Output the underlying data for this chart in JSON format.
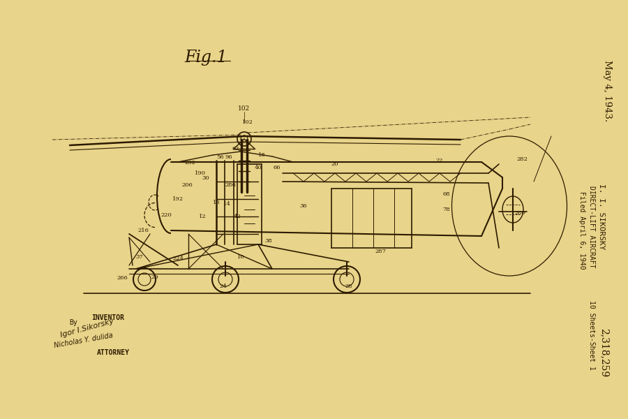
{
  "bg_color": "#E8D48A",
  "line_color": "#2C1A00",
  "fig_label": "Fig.1",
  "right_top": "May 4, 1943.",
  "right_mid1": "I. I. SIKORSKY",
  "right_mid2": "DIRECT-LIFT AIRCRAFT",
  "right_mid3": "Filed April 6, 1940",
  "right_bot1": "10 Sheets-Sheet 1",
  "right_bot2": "2,318,259",
  "bottom_inv": "INVENTOR",
  "bottom_sig1": "Igor I.Sikorsky",
  "bottom_by": "By",
  "bottom_sig2": "Nicholas Y. dulida",
  "bottom_atty": "ATTORNEY",
  "figsize": [
    9.0,
    6.0
  ],
  "dpi": 100
}
